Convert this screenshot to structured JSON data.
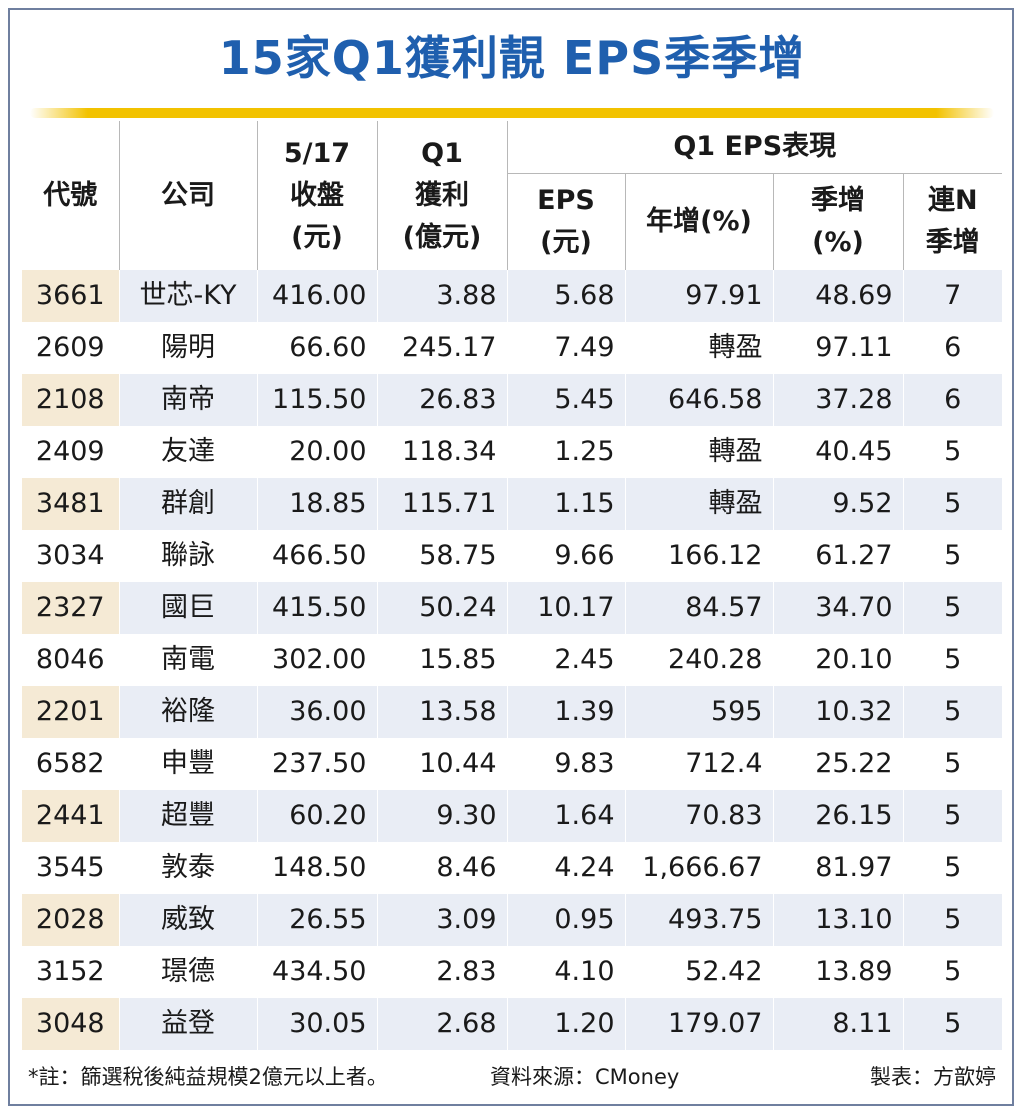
{
  "title": "15家Q1獲利靚 EPS季季增",
  "headers": {
    "code": "代號",
    "company": "公司",
    "close_l1": "5/17",
    "close_l2": "收盤",
    "close_l3": "(元)",
    "profit_l1": "Q1",
    "profit_l2": "獲利",
    "profit_l3": "(億元)",
    "group": "Q1 EPS表現",
    "eps_l1": "EPS",
    "eps_l2": "(元)",
    "yoy": "年增(%)",
    "qoq_l1": "季增",
    "qoq_l2": "(%)",
    "streak_l1": "連N",
    "streak_l2": "季增"
  },
  "rows": [
    {
      "code": "3661",
      "company": "世芯-KY",
      "close": "416.00",
      "profit": "3.88",
      "eps": "5.68",
      "yoy": "97.91",
      "qoq": "48.69",
      "streak": "7"
    },
    {
      "code": "2609",
      "company": "陽明",
      "close": "66.60",
      "profit": "245.17",
      "eps": "7.49",
      "yoy": "轉盈",
      "qoq": "97.11",
      "streak": "6"
    },
    {
      "code": "2108",
      "company": "南帝",
      "close": "115.50",
      "profit": "26.83",
      "eps": "5.45",
      "yoy": "646.58",
      "qoq": "37.28",
      "streak": "6"
    },
    {
      "code": "2409",
      "company": "友達",
      "close": "20.00",
      "profit": "118.34",
      "eps": "1.25",
      "yoy": "轉盈",
      "qoq": "40.45",
      "streak": "5"
    },
    {
      "code": "3481",
      "company": "群創",
      "close": "18.85",
      "profit": "115.71",
      "eps": "1.15",
      "yoy": "轉盈",
      "qoq": "9.52",
      "streak": "5"
    },
    {
      "code": "3034",
      "company": "聯詠",
      "close": "466.50",
      "profit": "58.75",
      "eps": "9.66",
      "yoy": "166.12",
      "qoq": "61.27",
      "streak": "5"
    },
    {
      "code": "2327",
      "company": "國巨",
      "close": "415.50",
      "profit": "50.24",
      "eps": "10.17",
      "yoy": "84.57",
      "qoq": "34.70",
      "streak": "5"
    },
    {
      "code": "8046",
      "company": "南電",
      "close": "302.00",
      "profit": "15.85",
      "eps": "2.45",
      "yoy": "240.28",
      "qoq": "20.10",
      "streak": "5"
    },
    {
      "code": "2201",
      "company": "裕隆",
      "close": "36.00",
      "profit": "13.58",
      "eps": "1.39",
      "yoy": "595",
      "qoq": "10.32",
      "streak": "5"
    },
    {
      "code": "6582",
      "company": "申豐",
      "close": "237.50",
      "profit": "10.44",
      "eps": "9.83",
      "yoy": "712.4",
      "qoq": "25.22",
      "streak": "5"
    },
    {
      "code": "2441",
      "company": "超豐",
      "close": "60.20",
      "profit": "9.30",
      "eps": "1.64",
      "yoy": "70.83",
      "qoq": "26.15",
      "streak": "5"
    },
    {
      "code": "3545",
      "company": "敦泰",
      "close": "148.50",
      "profit": "8.46",
      "eps": "4.24",
      "yoy": "1,666.67",
      "qoq": "81.97",
      "streak": "5"
    },
    {
      "code": "2028",
      "company": "威致",
      "close": "26.55",
      "profit": "3.09",
      "eps": "0.95",
      "yoy": "493.75",
      "qoq": "13.10",
      "streak": "5"
    },
    {
      "code": "3152",
      "company": "璟德",
      "close": "434.50",
      "profit": "2.83",
      "eps": "4.10",
      "yoy": "52.42",
      "qoq": "13.89",
      "streak": "5"
    },
    {
      "code": "3048",
      "company": "益登",
      "close": "30.05",
      "profit": "2.68",
      "eps": "1.20",
      "yoy": "179.07",
      "qoq": "8.11",
      "streak": "5"
    }
  ],
  "footer": {
    "note": "*註：篩選稅後純益規模2億元以上者。",
    "source": "資料來源：CMoney",
    "author": "製表：方歆婷"
  },
  "colors": {
    "title": "#1f5fae",
    "rule": "#f2c200",
    "row_band": "#e9edf5",
    "code_band": "#f5ead5",
    "frame": "#6f7f9f"
  }
}
